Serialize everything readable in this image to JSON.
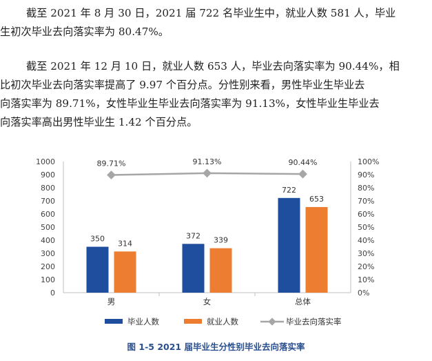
{
  "paragraphs": [
    {
      "lines": [
        "截至 2021 年 8 月 30 日，2021 届 722 名毕业生中，就业人数 581 人，毕业",
        "生初次毕业去向落实率为 80.47%。"
      ]
    },
    {
      "lines": [
        "截至 2021 年 12 月 10 日，就业人数 653 人，毕业去向落实率为 90.44%，相",
        "比初次毕业去向落实率提高了 9.97 个百分点。分性别来看，男性毕业生毕业去",
        "向落实率为 89.71%，女性毕业生毕业去向落实率为 91.13%，女性毕业生毕业去",
        "向落实率高出男性毕业生 1.42 个百分点。"
      ]
    }
  ],
  "chart_data": {
    "type": "bar",
    "categories": [
      "男",
      "女",
      "总体"
    ],
    "series": [
      {
        "name": "毕业人数",
        "type": "bar",
        "axis": "left",
        "color": "#1f4e9e",
        "values": [
          350,
          372,
          722
        ]
      },
      {
        "name": "就业人数",
        "type": "bar",
        "axis": "left",
        "color": "#ed7d31",
        "values": [
          314,
          339,
          653
        ]
      },
      {
        "name": "毕业去向落实率",
        "type": "line",
        "axis": "right",
        "color": "#a6a6a6",
        "values": [
          89.71,
          91.13,
          90.44
        ],
        "labels": [
          "89.71%",
          "91.13%",
          "90.44%"
        ]
      }
    ],
    "ylim": [
      0,
      1000
    ],
    "yticks": [
      "0",
      "100",
      "200",
      "300",
      "400",
      "500",
      "600",
      "700",
      "800",
      "900",
      "1000"
    ],
    "y2lim": [
      0,
      100
    ],
    "y2ticks": [
      "0%",
      "10%",
      "20%",
      "30%",
      "40%",
      "50%",
      "60%",
      "70%",
      "80%",
      "90%",
      "100%"
    ],
    "grid": false,
    "legend": "bottom",
    "caption": "图 1-5 2021 届毕业生分性别毕业去向落实率"
  }
}
